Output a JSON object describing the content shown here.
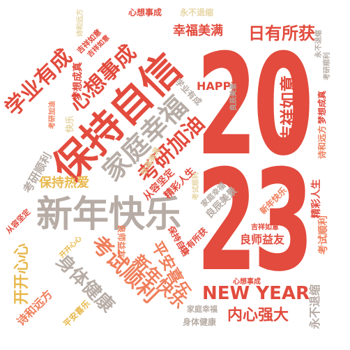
{
  "colors": {
    "red": "#e24b3d",
    "orange": "#ef7e5a",
    "gold": "#e8b84d",
    "gray": "#b7aca5",
    "pale": "#e6d5a4"
  },
  "year_top": "20",
  "year_bottom": "23",
  "words": {
    "w01": "保持自信",
    "w02": "新年快乐",
    "w03": "家庭幸福",
    "w04": "心想事成",
    "w05": "学业有成",
    "w06": "考研加油",
    "w07": "幸福美满",
    "w08": "日有所获",
    "w09": "吉祥如意",
    "w10": "NEW YEAR",
    "w11": "HAPPY",
    "w12": "考试顺利",
    "w13": "身体健康",
    "w14": "内心强大",
    "w15": "良师益友",
    "w16": "平安喜乐",
    "w17": "新年快乐",
    "w18": "开开心心",
    "w19": "诗和远方",
    "w20": "永不退缩",
    "w21": "梦想成真",
    "w22": "从容坚定",
    "w23": "精彩人生",
    "w24": "保持热爱",
    "w25": "考研顺利",
    "w26": "心想事成",
    "w27": "永不退缩",
    "w28": "吉祥如意",
    "w29": "学业有成",
    "w30": "考试顺利",
    "w31": "诗和远方",
    "w32": "精彩人生",
    "w33": "良辰美景",
    "w34": "家庭幸福",
    "w35": "新年快乐",
    "w36": "良师益友",
    "w37": "吉祥如意",
    "w38": "考试顺利",
    "w39": "心想事成",
    "w40": "家庭幸福",
    "w41": "身体健康",
    "w42": "日有所获",
    "w43": "保持自信",
    "w44": "从容坚定",
    "w45": "诗和远方",
    "w46": "考研加油",
    "w47": "快乐",
    "w48": "梦想成真",
    "w49": "考研顺利",
    "w50": "永不退缩",
    "w51": "开开心心",
    "w52": "平安喜乐",
    "w53": "幸福美满",
    "w54": "良辰美景",
    "w55": "吉祥如意"
  }
}
